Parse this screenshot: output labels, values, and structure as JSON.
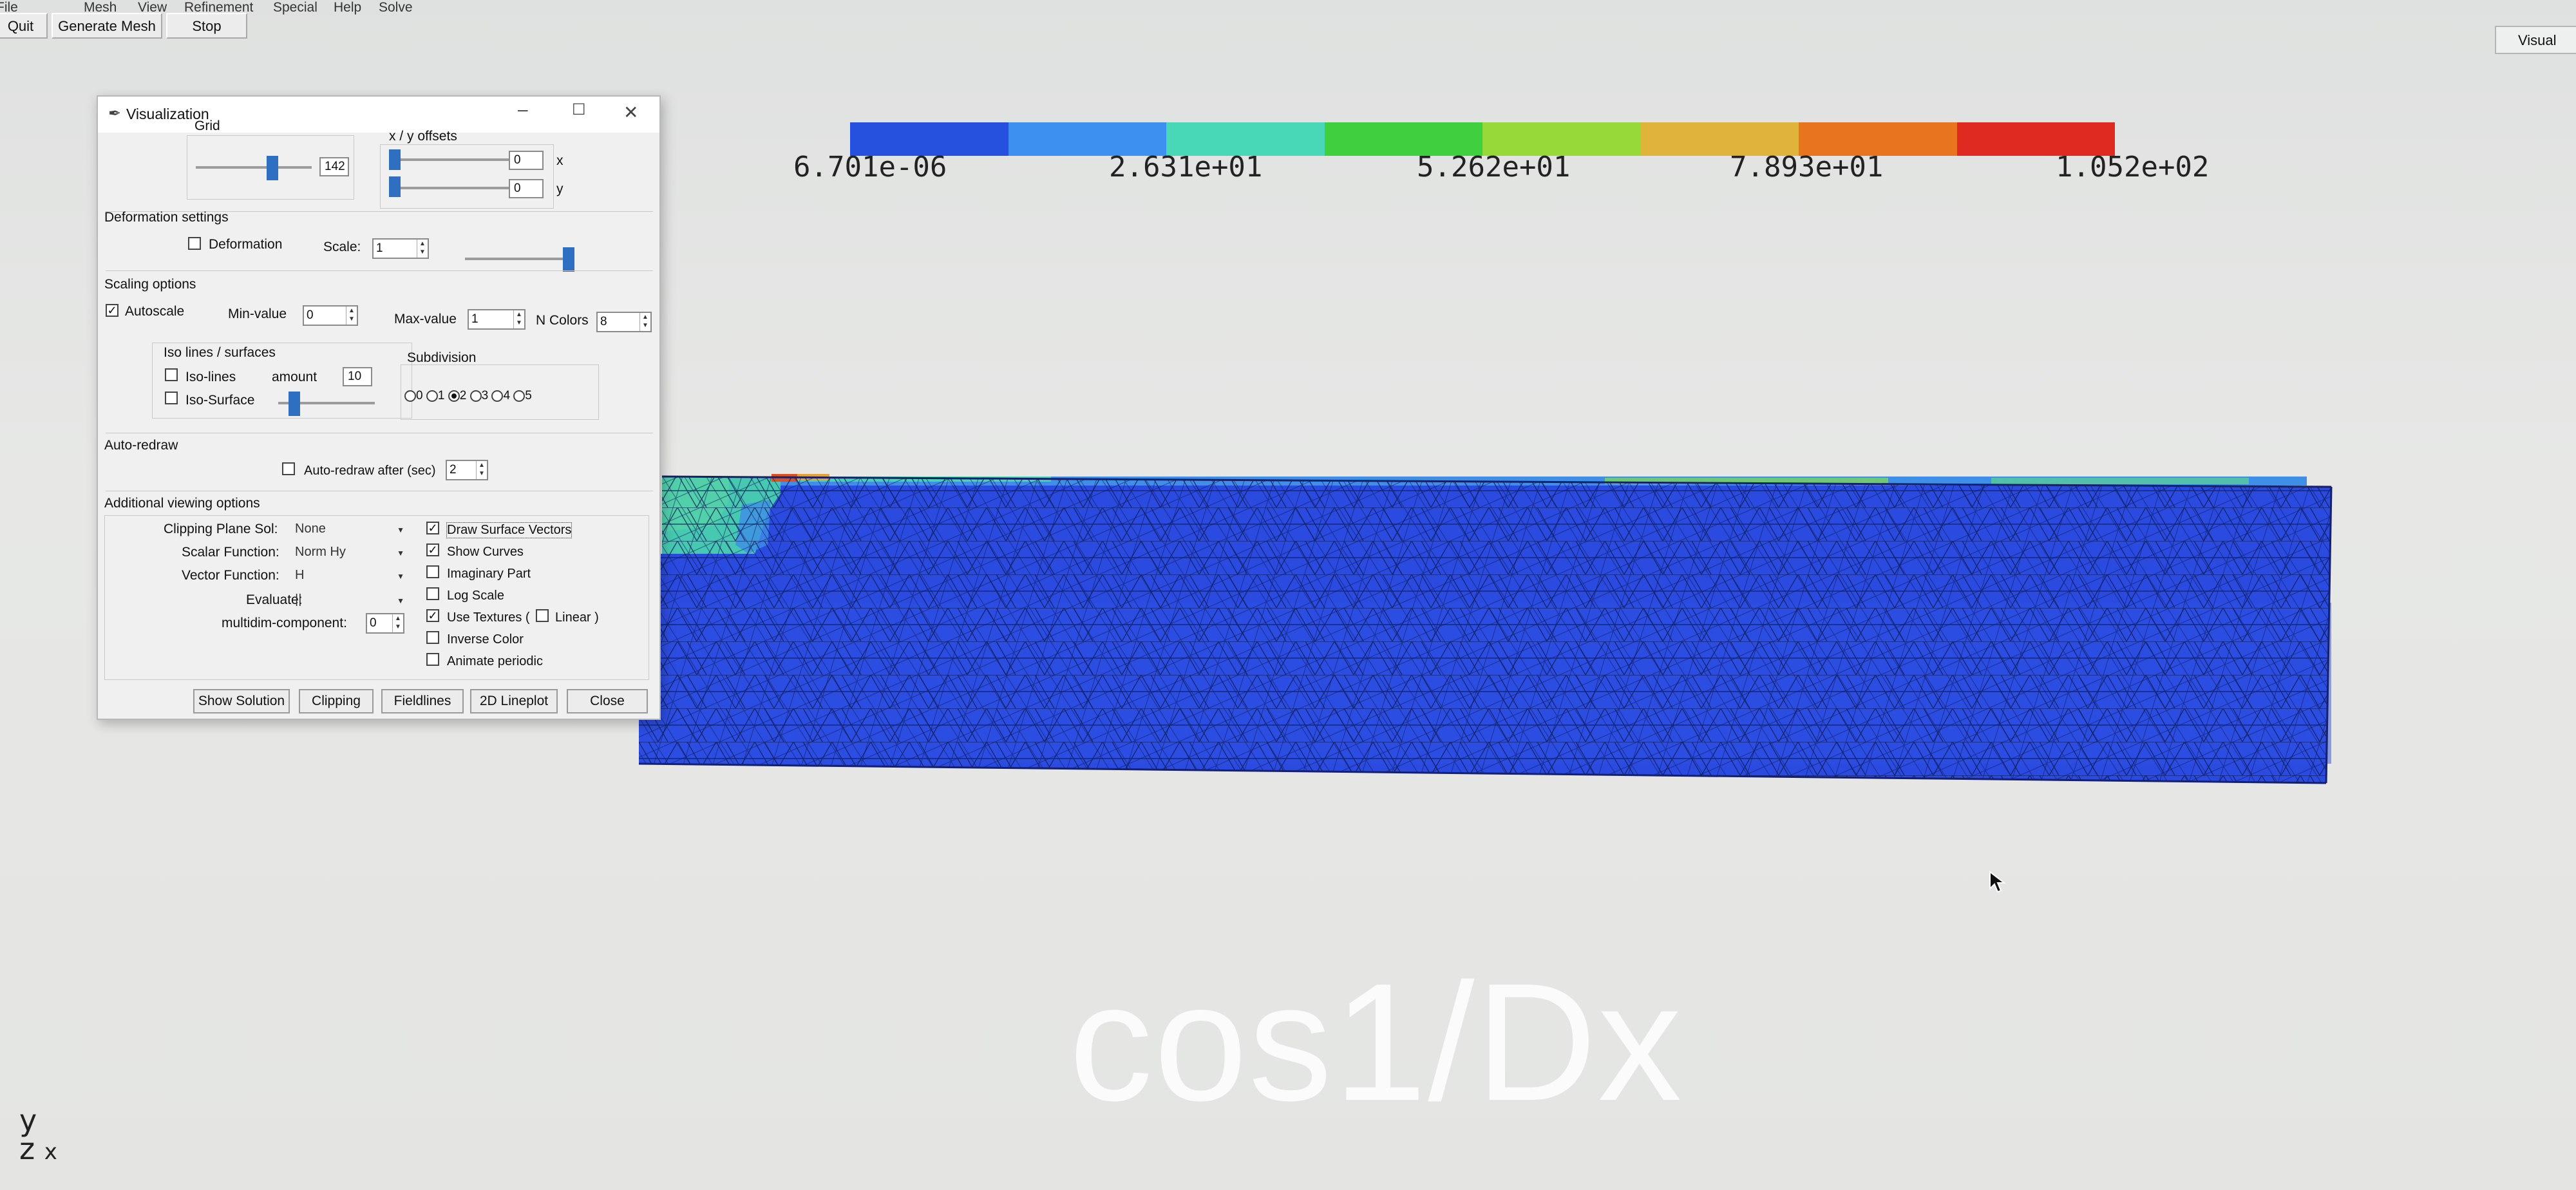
{
  "menubar": {
    "items": [
      "File",
      "Mesh",
      "View",
      "Refinement",
      "Special",
      "Help",
      "Solve"
    ]
  },
  "toolbar": {
    "quit": "Quit",
    "generate_mesh": "Generate Mesh",
    "stop": "Stop"
  },
  "right_tab": {
    "label": "Visual"
  },
  "colorbar": {
    "labels": [
      "6.701e-06",
      "2.631e+01",
      "5.262e+01",
      "7.893e+01",
      "1.052e+02"
    ],
    "colors": [
      "#2650de",
      "#3d8ff0",
      "#48d8b8",
      "#3fcf3f",
      "#98d93a",
      "#e0b43a",
      "#e8741f",
      "#df2a22"
    ]
  },
  "plot": {
    "caption": "cos1/Dx",
    "axes_y": "y",
    "axes_z": "z",
    "axes_x": "x"
  },
  "dialog": {
    "title": "Visualization",
    "grid": {
      "label": "Grid",
      "value": "142"
    },
    "offsets": {
      "label": "x / y offsets",
      "x_value": "0",
      "y_value": "0",
      "x_label": "x",
      "y_label": "y"
    },
    "deformation": {
      "section": "Deformation settings",
      "checkbox": "Deformation",
      "scale_label": "Scale:",
      "scale_value": "1"
    },
    "scaling": {
      "section": "Scaling options",
      "autoscale": "Autoscale",
      "min_label": "Min-value",
      "min_value": "0",
      "max_label": "Max-value",
      "max_value": "1",
      "ncolors_label": "N Colors",
      "ncolors_value": "8"
    },
    "iso": {
      "section": "Iso lines / surfaces",
      "iso_lines": "Iso-lines",
      "amount_label": "amount",
      "amount_value": "10",
      "iso_surface": "Iso-Surface"
    },
    "subdivision": {
      "section": "Subdivision",
      "options": [
        "0",
        "1",
        "2",
        "3",
        "4",
        "5"
      ],
      "selected": "2"
    },
    "autoredraw": {
      "section": "Auto-redraw",
      "checkbox": "Auto-redraw after (sec)",
      "value": "2"
    },
    "additional": {
      "section": "Additional viewing options",
      "clipping_label": "Clipping Plane Sol:",
      "clipping_value": "None",
      "scalar_label": "Scalar Function:",
      "scalar_value": "Norm Hy",
      "vector_label": "Vector Function:",
      "vector_value": "H",
      "evaluate_label": "Evaluate:",
      "evaluate_value": "||",
      "multidim_label": "multidim-component:",
      "multidim_value": "0",
      "draw_surface_vectors": "Draw Surface Vectors",
      "show_curves": "Show Curves",
      "imaginary_part": "Imaginary Part",
      "log_scale": "Log Scale",
      "use_textures": "Use Textures (",
      "linear": "Linear )",
      "inverse_color": "Inverse Color",
      "animate_periodic": "Animate periodic"
    },
    "buttons": {
      "show_solution": "Show Solution",
      "clipping": "Clipping",
      "fieldlines": "Fieldlines",
      "lineplot": "2D Lineplot",
      "close": "Close"
    }
  }
}
